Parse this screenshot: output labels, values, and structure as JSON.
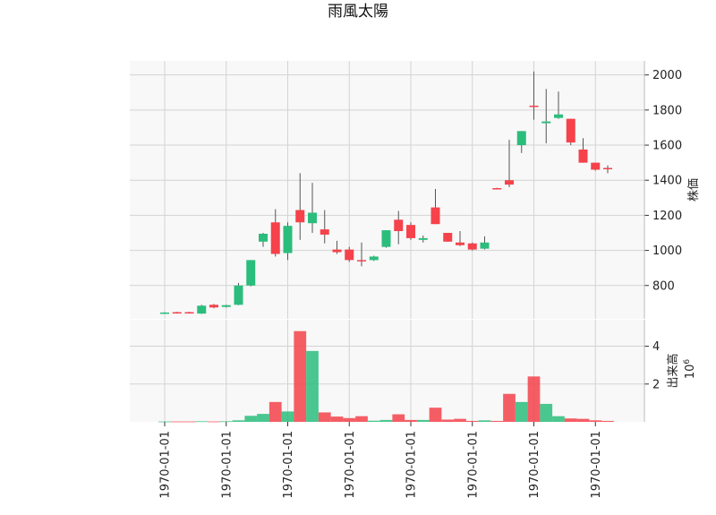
{
  "chart_data": {
    "type": "candlestick",
    "title": "雨風太陽",
    "colors": {
      "up": "#2bbd7c",
      "down": "#f5424b",
      "panel_background": "#f8f8f8",
      "grid": "#d3d3d3"
    },
    "price_panel": {
      "ylabel": "株価",
      "yticks": [
        800,
        1000,
        1200,
        1400,
        1600,
        1800,
        2000
      ],
      "ylim": [
        610,
        2080
      ],
      "grid": true
    },
    "volume_panel": {
      "ylabel": "出来高",
      "unit_label": "10",
      "unit_exponent": "6",
      "yticks": [
        2,
        4
      ],
      "ylim": [
        0,
        5.4
      ],
      "grid": true
    },
    "x_tick_labels": [
      "1970-01-01",
      "1970-01-01",
      "1970-01-01",
      "1970-01-01",
      "1970-01-01",
      "1970-01-01",
      "1970-01-01",
      "1970-01-01"
    ],
    "x_tick_bars": [
      0,
      5,
      10,
      15,
      20,
      25,
      30,
      35
    ],
    "bars": [
      {
        "open": 645,
        "high": 648,
        "low": 643,
        "close": 646,
        "volume": 0.02
      },
      {
        "open": 648,
        "high": 650,
        "low": 644,
        "close": 645,
        "volume": 0.02
      },
      {
        "open": 648,
        "high": 650,
        "low": 645,
        "close": 646,
        "volume": 0.02
      },
      {
        "open": 640,
        "high": 690,
        "low": 638,
        "close": 685,
        "volume": 0.03
      },
      {
        "open": 690,
        "high": 695,
        "low": 670,
        "close": 675,
        "volume": 0.02
      },
      {
        "open": 678,
        "high": 690,
        "low": 675,
        "close": 688,
        "volume": 0.03
      },
      {
        "open": 690,
        "high": 815,
        "low": 688,
        "close": 800,
        "volume": 0.08
      },
      {
        "open": 800,
        "high": 945,
        "low": 795,
        "close": 945,
        "volume": 0.32
      },
      {
        "open": 1050,
        "high": 1100,
        "low": 1020,
        "close": 1095,
        "volume": 0.42
      },
      {
        "open": 1160,
        "high": 1235,
        "low": 965,
        "close": 980,
        "volume": 1.05
      },
      {
        "open": 985,
        "high": 1160,
        "low": 945,
        "close": 1140,
        "volume": 0.55
      },
      {
        "open": 1230,
        "high": 1440,
        "low": 1060,
        "close": 1160,
        "volume": 4.8
      },
      {
        "open": 1155,
        "high": 1385,
        "low": 1100,
        "close": 1215,
        "volume": 3.75
      },
      {
        "open": 1120,
        "high": 1230,
        "low": 1040,
        "close": 1090,
        "volume": 0.5
      },
      {
        "open": 1005,
        "high": 1055,
        "low": 980,
        "close": 990,
        "volume": 0.28
      },
      {
        "open": 1005,
        "high": 1020,
        "low": 935,
        "close": 945,
        "volume": 0.2
      },
      {
        "open": 945,
        "high": 1045,
        "low": 910,
        "close": 940,
        "volume": 0.3
      },
      {
        "open": 945,
        "high": 970,
        "low": 940,
        "close": 965,
        "volume": 0.06
      },
      {
        "open": 1020,
        "high": 1115,
        "low": 1015,
        "close": 1115,
        "volume": 0.1
      },
      {
        "open": 1175,
        "high": 1225,
        "low": 1035,
        "close": 1110,
        "volume": 0.4
      },
      {
        "open": 1145,
        "high": 1160,
        "low": 1060,
        "close": 1070,
        "volume": 0.1
      },
      {
        "open": 1060,
        "high": 1085,
        "low": 1045,
        "close": 1070,
        "volume": 0.1
      },
      {
        "open": 1245,
        "high": 1350,
        "low": 1150,
        "close": 1150,
        "volume": 0.75
      },
      {
        "open": 1100,
        "high": 1100,
        "low": 1050,
        "close": 1050,
        "volume": 0.12
      },
      {
        "open": 1045,
        "high": 1110,
        "low": 1025,
        "close": 1030,
        "volume": 0.16
      },
      {
        "open": 1040,
        "high": 1045,
        "low": 1000,
        "close": 1005,
        "volume": 0.05
      },
      {
        "open": 1010,
        "high": 1080,
        "low": 1005,
        "close": 1045,
        "volume": 0.08
      },
      {
        "open": 1355,
        "high": 1357,
        "low": 1350,
        "close": 1352,
        "volume": 0.05
      },
      {
        "open": 1400,
        "high": 1630,
        "low": 1360,
        "close": 1375,
        "volume": 1.48
      },
      {
        "open": 1600,
        "high": 1680,
        "low": 1555,
        "close": 1680,
        "volume": 1.05
      },
      {
        "open": 1825,
        "high": 2020,
        "low": 1745,
        "close": 1820,
        "volume": 2.4
      },
      {
        "open": 1725,
        "high": 1920,
        "low": 1610,
        "close": 1735,
        "volume": 0.95
      },
      {
        "open": 1755,
        "high": 1905,
        "low": 1750,
        "close": 1775,
        "volume": 0.3
      },
      {
        "open": 1750,
        "high": 1750,
        "low": 1600,
        "close": 1615,
        "volume": 0.18
      },
      {
        "open": 1575,
        "high": 1640,
        "low": 1500,
        "close": 1500,
        "volume": 0.16
      },
      {
        "open": 1500,
        "high": 1500,
        "low": 1455,
        "close": 1460,
        "volume": 0.08
      },
      {
        "open": 1470,
        "high": 1485,
        "low": 1440,
        "close": 1465,
        "volume": 0.05
      }
    ]
  }
}
